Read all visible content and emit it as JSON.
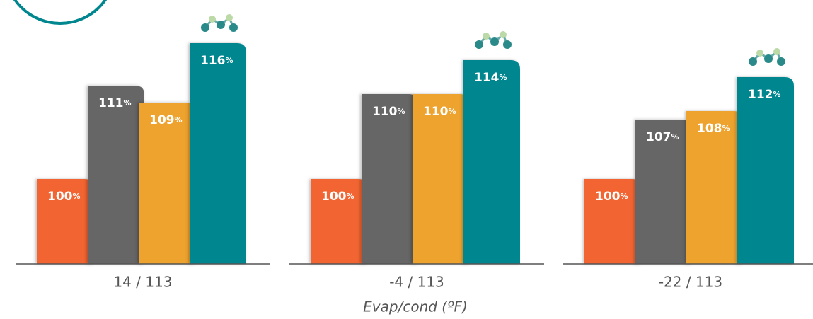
{
  "chart_data": {
    "type": "bar",
    "x_label": "Evap/cond (ºF)",
    "categories": [
      "14 / 113",
      "-4 / 113",
      "-22 / 113"
    ],
    "series": [
      {
        "color": "#f26532",
        "values": [
          100,
          100,
          100
        ],
        "value_labels": [
          "100%",
          "100%",
          "100%"
        ]
      },
      {
        "color": "#666666",
        "values": [
          111,
          110,
          107
        ],
        "value_labels": [
          "111%",
          "110%",
          "107%"
        ]
      },
      {
        "color": "#eea32f",
        "values": [
          109,
          110,
          108
        ],
        "value_labels": [
          "109%",
          "110%",
          "108%"
        ]
      },
      {
        "color": "#00868f",
        "values": [
          116,
          114,
          112
        ],
        "value_labels": [
          "116%",
          "114%",
          "112%"
        ]
      }
    ],
    "ylim": [
      90,
      120
    ]
  }
}
